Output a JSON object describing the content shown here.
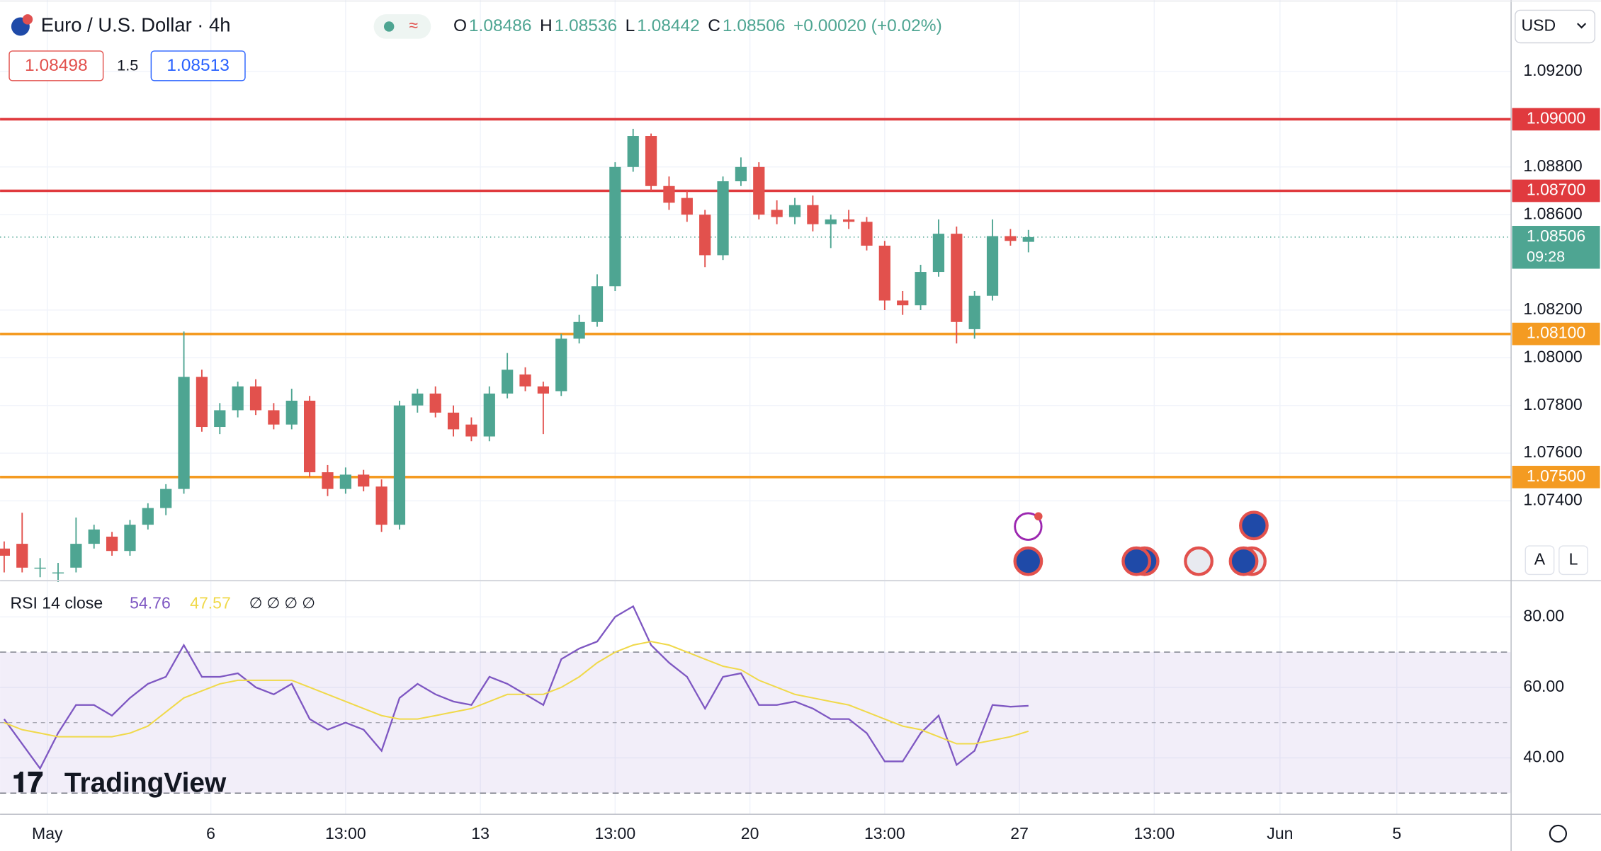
{
  "header": {
    "title": "Euro / U.S. Dollar · 4h",
    "quote": [
      {
        "key": "O",
        "value": "1.08486"
      },
      {
        "key": "H",
        "value": "1.08536"
      },
      {
        "key": "L",
        "value": "1.08442"
      },
      {
        "key": "C",
        "value": "1.08506"
      }
    ],
    "change": "+0.00020 (+0.02%)",
    "bid": "1.08498",
    "spread": "1.5",
    "ask": "1.08513",
    "currency": "USD",
    "buttons": [
      "A",
      "L"
    ],
    "logo": "TradingView"
  },
  "chart_data": [
    {
      "type": "candlestick",
      "xlim": [
        -0.23,
        83.86
      ],
      "xticks": [
        {
          "value": 2.4,
          "label": "May"
        },
        {
          "value": 11.5,
          "label": "6"
        },
        {
          "value": 19,
          "label": "13:00"
        },
        {
          "value": 26.5,
          "label": "13"
        },
        {
          "value": 34,
          "label": "13:00"
        },
        {
          "value": 41.5,
          "label": "20"
        },
        {
          "value": 49,
          "label": "13:00"
        },
        {
          "value": 56.5,
          "label": "27"
        },
        {
          "value": 64,
          "label": "13:00"
        },
        {
          "value": 71,
          "label": "Jun"
        },
        {
          "value": 77.5,
          "label": "5"
        }
      ],
      "ylim": [
        1.0707,
        1.095
      ],
      "yticks": [
        {
          "value": 1.092,
          "label": "1.09200"
        },
        {
          "value": 1.088,
          "label": "1.08800"
        },
        {
          "value": 1.086,
          "label": "1.08600"
        },
        {
          "value": 1.082,
          "label": "1.08200"
        },
        {
          "value": 1.08,
          "label": "1.08000"
        },
        {
          "value": 1.078,
          "label": "1.07800"
        },
        {
          "value": 1.076,
          "label": "1.07600"
        },
        {
          "value": 1.074,
          "label": "1.07400"
        }
      ],
      "up_color": "#4ea592",
      "down_color": "#e2514d",
      "open": [
        1.072,
        1.0722,
        1.0712,
        1.071,
        1.0712,
        1.0722,
        1.0725,
        1.0719,
        1.073,
        1.0737,
        1.0745,
        1.0792,
        1.0771,
        1.0778,
        1.0788,
        1.0778,
        1.0772,
        1.0782,
        1.0752,
        1.0745,
        1.0751,
        1.0746,
        1.073,
        1.078,
        1.0785,
        1.0777,
        1.0772,
        1.0767,
        1.0785,
        1.0793,
        1.0788,
        1.0786,
        1.0808,
        1.0815,
        1.083,
        1.088,
        1.0893,
        1.0872,
        1.0867,
        1.086,
        1.0843,
        1.0874,
        1.088,
        1.0862,
        1.0859,
        1.0864,
        1.0856,
        1.0858,
        1.0857,
        1.0847,
        1.0824,
        1.0822,
        1.0836,
        1.0852,
        1.0812,
        1.0826,
        1.0851,
        1.08486
      ],
      "high": [
        1.0723,
        1.0735,
        1.0716,
        1.0714,
        1.0733,
        1.073,
        1.0727,
        1.0732,
        1.0739,
        1.0747,
        1.0811,
        1.0795,
        1.0781,
        1.079,
        1.0791,
        1.0781,
        1.0787,
        1.0784,
        1.0755,
        1.0754,
        1.0753,
        1.0749,
        1.0782,
        1.0787,
        1.0788,
        1.078,
        1.0775,
        1.0788,
        1.0802,
        1.0796,
        1.079,
        1.081,
        1.0818,
        1.0835,
        1.0882,
        1.0896,
        1.0894,
        1.0876,
        1.087,
        1.0862,
        1.0876,
        1.0884,
        1.0882,
        1.0866,
        1.0867,
        1.0868,
        1.086,
        1.0862,
        1.0859,
        1.0849,
        1.0828,
        1.0839,
        1.0858,
        1.0855,
        1.0828,
        1.0858,
        1.0854,
        1.08536
      ],
      "low": [
        1.071,
        1.071,
        1.0708,
        1.0706,
        1.071,
        1.072,
        1.0717,
        1.0717,
        1.0728,
        1.0734,
        1.0743,
        1.0769,
        1.0768,
        1.0775,
        1.0776,
        1.077,
        1.077,
        1.075,
        1.0742,
        1.0743,
        1.0744,
        1.0727,
        1.0728,
        1.0777,
        1.0775,
        1.0767,
        1.0765,
        1.0765,
        1.0783,
        1.0786,
        1.0768,
        1.0784,
        1.0806,
        1.0813,
        1.0828,
        1.0878,
        1.087,
        1.0862,
        1.0857,
        1.0838,
        1.0841,
        1.0872,
        1.0858,
        1.0856,
        1.0856,
        1.0853,
        1.0846,
        1.0854,
        1.0845,
        1.082,
        1.0818,
        1.082,
        1.0834,
        1.0806,
        1.0808,
        1.0824,
        1.0847,
        1.08442
      ],
      "close": [
        1.0717,
        1.0712,
        1.0712,
        1.071,
        1.0722,
        1.0728,
        1.0719,
        1.073,
        1.0737,
        1.0745,
        1.0792,
        1.0771,
        1.0778,
        1.0788,
        1.0778,
        1.0772,
        1.0782,
        1.0752,
        1.0745,
        1.0751,
        1.0746,
        1.073,
        1.078,
        1.0785,
        1.0777,
        1.077,
        1.0767,
        1.0785,
        1.0795,
        1.0788,
        1.0785,
        1.0808,
        1.0815,
        1.083,
        1.088,
        1.0893,
        1.0872,
        1.0865,
        1.086,
        1.0843,
        1.0874,
        1.088,
        1.086,
        1.0859,
        1.0864,
        1.0856,
        1.0858,
        1.0857,
        1.0847,
        1.0824,
        1.0822,
        1.0836,
        1.0852,
        1.0815,
        1.0826,
        1.0851,
        1.0849,
        1.08506
      ],
      "levels": [
        {
          "value": 1.09,
          "label": "1.09000",
          "color": "#e03a3e"
        },
        {
          "value": 1.087,
          "label": "1.08700",
          "color": "#e03a3e"
        },
        {
          "value": 1.081,
          "label": "1.08100",
          "color": "#f49b22"
        },
        {
          "value": 1.075,
          "label": "1.07500",
          "color": "#f49b22"
        }
      ],
      "last_price": {
        "value": 1.08506,
        "label": "1.08506",
        "countdown": "09:28",
        "color": "#4ea592"
      }
    },
    {
      "type": "line",
      "title": "RSI 14 close",
      "ylim": [
        24,
        90
      ],
      "yticks": [
        {
          "value": 80,
          "label": "80.00"
        },
        {
          "value": 60,
          "label": "60.00"
        },
        {
          "value": 40,
          "label": "40.00"
        }
      ],
      "bands": [
        30,
        50,
        70
      ],
      "series": [
        {
          "name": "54.76",
          "color": "#7e57c2",
          "values": [
            51,
            44,
            37,
            47,
            55,
            55,
            52,
            57,
            61,
            63,
            72,
            63,
            63,
            64,
            60,
            58,
            61,
            51,
            48,
            50,
            48,
            42,
            57,
            61,
            58,
            56,
            55,
            63,
            61,
            58,
            55,
            68,
            71,
            73,
            80,
            83,
            72,
            67,
            63,
            54,
            63,
            64,
            55,
            55,
            56,
            54,
            51,
            51,
            47,
            39,
            39,
            47,
            52,
            38,
            42,
            55,
            54.5,
            54.76
          ]
        },
        {
          "name": "47.57",
          "color": "#f0d94a",
          "values": [
            50,
            48,
            47,
            46,
            46,
            46,
            46,
            47,
            49,
            53,
            57,
            59,
            61,
            62,
            62,
            62,
            62,
            60,
            58,
            56,
            54,
            52,
            51,
            51,
            52,
            53,
            54,
            56,
            58,
            58,
            58,
            60,
            63,
            67,
            70,
            72,
            73,
            72,
            70,
            68,
            66,
            65,
            62,
            60,
            58,
            57,
            56,
            55,
            53,
            51,
            49,
            48,
            46,
            44,
            44,
            45,
            46,
            47.57
          ]
        }
      ]
    }
  ]
}
